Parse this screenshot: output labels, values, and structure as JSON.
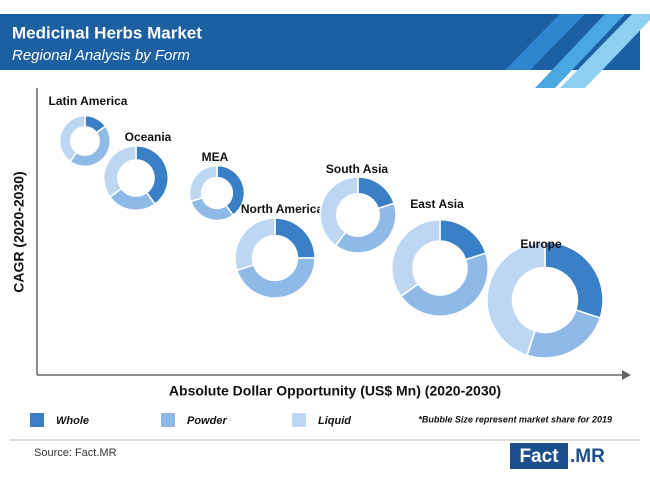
{
  "chart_data": {
    "type": "donut-bubble",
    "title": "Medicinal Herbs Market",
    "subtitle": "Regional Analysis by Form",
    "y_label": "CAGR (2020-2030)",
    "x_label": "Absolute Dollar Opportunity (US$ Mn) (2020-2030)",
    "note": "*Bubble Size represent market share for 2019",
    "source": "Source: Fact.MR",
    "logo": [
      "Fact",
      ".MR"
    ],
    "categories": [
      "Latin America",
      "Oceania",
      "MEA",
      "North America",
      "South Asia",
      "East Asia",
      "Europe"
    ],
    "sizes": [
      4,
      6.5,
      4.7,
      10,
      9,
      14.5,
      21
    ],
    "series": [
      {
        "name": "Whole",
        "color": "#3a80c6",
        "values": [
          15,
          40,
          40,
          25,
          20,
          20,
          30
        ]
      },
      {
        "name": "Powder",
        "color": "#8fb9e7",
        "values": [
          45,
          25,
          30,
          45,
          40,
          45,
          25
        ]
      },
      {
        "name": "Liquid",
        "color": "#bdd7f2",
        "values": [
          40,
          35,
          30,
          30,
          40,
          35,
          45
        ]
      }
    ]
  }
}
